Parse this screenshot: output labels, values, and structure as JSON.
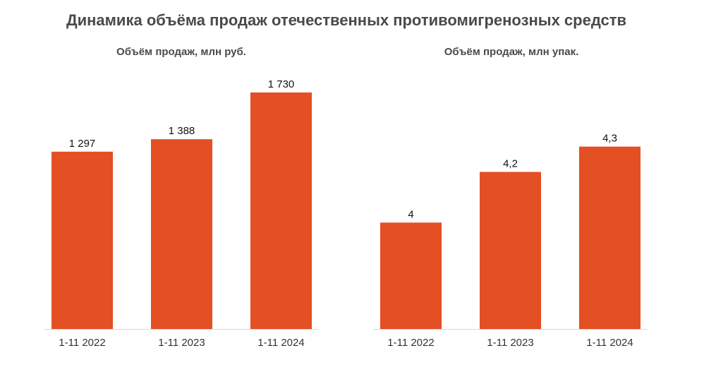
{
  "title": "Динамика объёма продаж отечественных противомигренозных средств",
  "bar_color": "#e44f24",
  "axis_color": "#d9d9d9",
  "chart_data": [
    {
      "type": "bar",
      "title": "Объём продаж, млн руб.",
      "xlabel": "",
      "ylabel": "",
      "categories": [
        "1-11 2022",
        "1-11 2023",
        "1-11 2024"
      ],
      "values": [
        1297,
        1388,
        1730
      ],
      "value_labels": [
        "1 297",
        "1 388",
        "1 730"
      ],
      "ylim": [
        0,
        1890
      ],
      "grid": false
    },
    {
      "type": "bar",
      "title": "Объём продаж, млн упак.",
      "xlabel": "",
      "ylabel": "",
      "categories": [
        "1-11 2022",
        "1-11 2023",
        "1-11 2024"
      ],
      "values": [
        4,
        4.2,
        4.3
      ],
      "value_labels": [
        "4",
        "4,2",
        "4,3"
      ],
      "ylim": [
        3.58,
        4.6
      ],
      "grid": false
    }
  ]
}
